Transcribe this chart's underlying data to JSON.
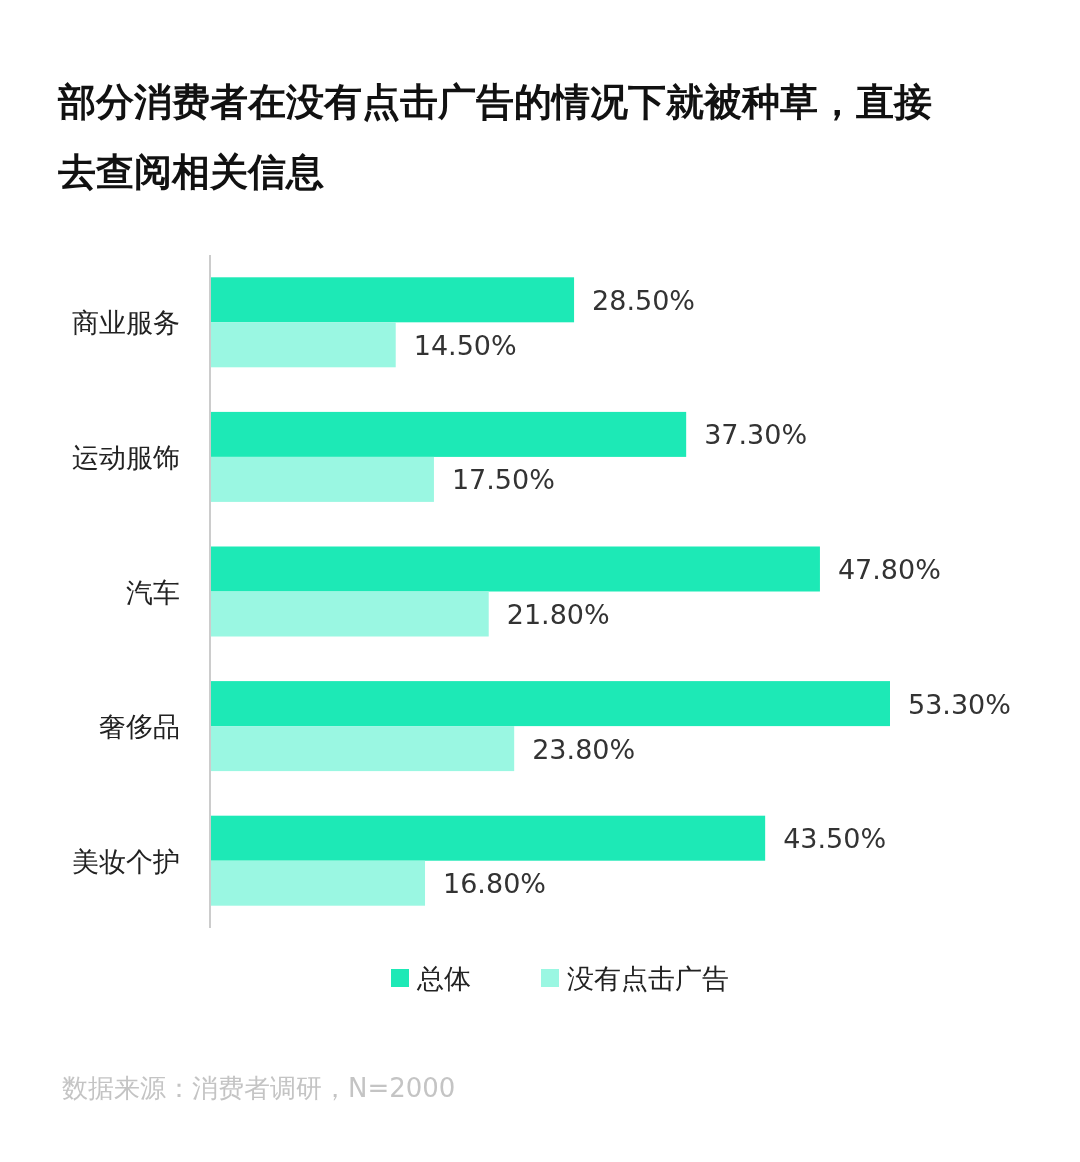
{
  "chart_data": {
    "type": "bar",
    "orientation": "horizontal",
    "title": "部分消费者在没有点击广告的情况下就被种草，直接去查阅相关信息",
    "categories": [
      "商业服务",
      "运动服饰",
      "汽车",
      "奢侈品",
      "美妆个护"
    ],
    "series": [
      {
        "name": "总体",
        "color": "#1de9b6",
        "values": [
          28.5,
          37.3,
          47.8,
          53.3,
          43.5
        ],
        "value_labels": [
          "28.50%",
          "37.30%",
          "47.80%",
          "53.30%",
          "43.50%"
        ]
      },
      {
        "name": "没有点击广告",
        "color": "#9af7e2",
        "values": [
          14.5,
          17.5,
          21.8,
          23.8,
          16.8
        ],
        "value_labels": [
          "14.50%",
          "17.50%",
          "21.80%",
          "23.80%",
          "16.80%"
        ]
      }
    ],
    "legend": "bottom",
    "annotations": [
      "数据来源：消费者调研，N=2000"
    ]
  }
}
